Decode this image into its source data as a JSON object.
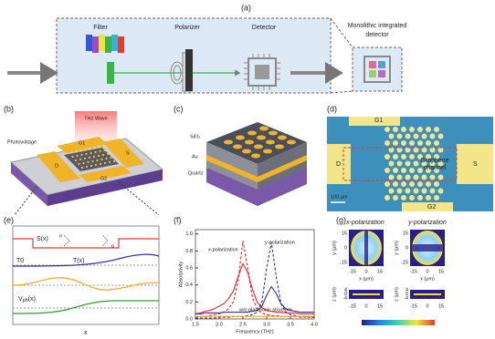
{
  "panel_a": {
    "label": "(a)",
    "filter": "Filter",
    "polarizer": "Polarizer",
    "detector": "Detector",
    "monolithic_lines": [
      "Monolithic integrated",
      "detector"
    ]
  },
  "panel_b": {
    "label": "(b)",
    "thz_wave": "THz Wave",
    "photovoltage": "Photovoltage",
    "g1": "G1",
    "g2": "G2",
    "d": "D",
    "s": "S"
  },
  "panel_c": {
    "label": "(c)",
    "sio2": "SiO₂",
    "au": "Au",
    "quartz": "Quartz"
  },
  "panel_d": {
    "label": "(d)",
    "g1": "G1",
    "g2": "G2",
    "d": "D",
    "s": "S",
    "channel_lines": [
      "Graphene",
      "channel"
    ],
    "scale": "100 μm"
  },
  "panel_e": {
    "label": "(e)",
    "s_x": "S(x)",
    "t_x": "T(x)",
    "t0": "T0",
    "v_ph": "V",
    "v_ph_sub": "ph",
    "v_ph_arg": "(x)",
    "x": "x",
    "n": "n",
    "p": "p"
  },
  "panel_g": {
    "label": "(g)",
    "x_pol": "x-polarization",
    "y_pol": "y-polarization",
    "y_axis": "y (μm)",
    "x_axis": "x (μm)",
    "z_axis": "z (μm)",
    "ticks": [
      "-15",
      "0",
      "15"
    ],
    "z_ticks": [
      "-4",
      "0",
      "4"
    ]
  },
  "chart_data": {
    "type": "line",
    "label": "(f)",
    "xlabel": "Frequency (THz)",
    "ylabel": "Absorptivity",
    "x": [
      1.5,
      1.6,
      1.7,
      1.8,
      1.9,
      2.0,
      2.1,
      2.2,
      2.3,
      2.4,
      2.5,
      2.6,
      2.7,
      2.8,
      2.9,
      3.0,
      3.1,
      3.2,
      3.3,
      3.4,
      3.5,
      3.6,
      3.7,
      3.8,
      3.9,
      4.0
    ],
    "xlim": [
      1.5,
      4.0
    ],
    "xticks": [
      1.5,
      {
        "value": 2,
        "label": "2.0"
      },
      2.5,
      {
        "value": 3,
        "label": "3.0"
      },
      3.5,
      {
        "value": 4,
        "label": "4.0"
      }
    ],
    "ylim": [
      0,
      1.05
    ],
    "yticks": [
      {
        "value": 0,
        "label": "0.0"
      },
      0.2,
      0.4,
      0.6,
      0.8,
      {
        "value": 1,
        "label": "1.0"
      }
    ],
    "series": [
      {
        "name": "x-polarization",
        "color": "#e8262a",
        "values": [
          0.06,
          0.07,
          0.09,
          0.1,
          0.12,
          0.15,
          0.18,
          0.24,
          0.33,
          0.5,
          0.65,
          0.55,
          0.35,
          0.2,
          0.13,
          0.1,
          0.09,
          0.08,
          0.08,
          0.07,
          0.07,
          0.07,
          0.06,
          0.06,
          0.06,
          0.06
        ]
      },
      {
        "color": "#e8262a",
        "dash": true,
        "values": [
          0.02,
          0.03,
          0.03,
          0.04,
          0.05,
          0.06,
          0.08,
          0.12,
          0.2,
          0.45,
          0.92,
          0.6,
          0.25,
          0.12,
          0.07,
          0.05,
          0.04,
          0.04,
          0.03,
          0.03,
          0.03,
          0.03,
          0.02,
          0.02,
          0.02,
          0.02
        ]
      },
      {
        "name": "y-polarization",
        "color": "#3a2ca0",
        "values": [
          0.06,
          0.06,
          0.07,
          0.07,
          0.07,
          0.07,
          0.08,
          0.08,
          0.08,
          0.08,
          0.08,
          0.08,
          0.09,
          0.1,
          0.15,
          0.28,
          0.38,
          0.3,
          0.18,
          0.12,
          0.1,
          0.09,
          0.08,
          0.08,
          0.08,
          0.08
        ]
      },
      {
        "color": "#3a2ca0",
        "dash": true,
        "values": [
          0.01,
          0.01,
          0.01,
          0.01,
          0.01,
          0.02,
          0.02,
          0.02,
          0.03,
          0.03,
          0.03,
          0.04,
          0.05,
          0.08,
          0.2,
          0.6,
          0.9,
          0.5,
          0.18,
          0.08,
          0.05,
          0.04,
          0.03,
          0.03,
          0.02,
          0.02
        ]
      },
      {
        "name": "w/o plasmonic structure",
        "color": "#f5a623",
        "values": [
          0.03,
          0.03,
          0.03,
          0.03,
          0.03,
          0.03,
          0.03,
          0.03,
          0.03,
          0.03,
          0.03,
          0.03,
          0.03,
          0.03,
          0.03,
          0.03,
          0.03,
          0.03,
          0.03,
          0.03,
          0.03,
          0.03,
          0.03,
          0.03,
          0.03,
          0.03
        ]
      }
    ]
  }
}
